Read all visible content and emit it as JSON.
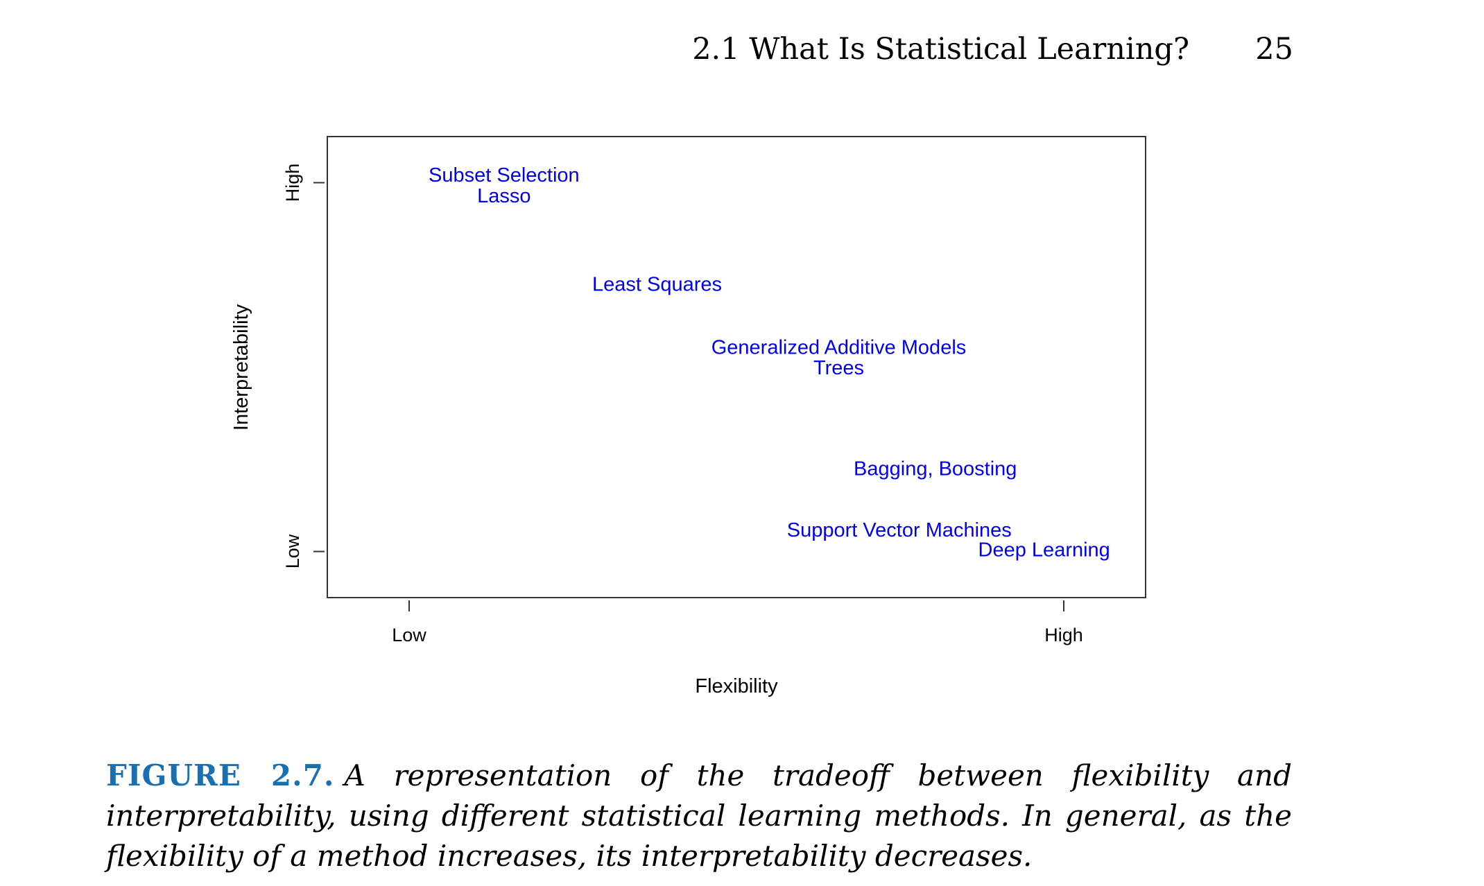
{
  "header": {
    "section_title": "2.1 What Is Statistical Learning?",
    "page_number": "25"
  },
  "chart_data": {
    "type": "scatter",
    "title": "",
    "xlabel": "Flexibility",
    "ylabel": "Interpretability",
    "xlim": [
      0,
      1
    ],
    "ylim": [
      0,
      1
    ],
    "x_ticks": [
      {
        "value": 0.1,
        "label": "Low"
      },
      {
        "value": 0.9,
        "label": "High"
      }
    ],
    "y_ticks": [
      {
        "value": 0.1,
        "label": "Low"
      },
      {
        "value": 0.9,
        "label": "High"
      }
    ],
    "label_color": "#0000ee",
    "grid": false,
    "points": [
      {
        "label": "Subset Selection",
        "x": 0.216,
        "y": 0.914
      },
      {
        "label": "Lasso",
        "x": 0.216,
        "y": 0.869
      },
      {
        "label": "Least Squares",
        "x": 0.403,
        "y": 0.677
      },
      {
        "label": "Generalized Additive Models",
        "x": 0.625,
        "y": 0.54
      },
      {
        "label": "Trees",
        "x": 0.625,
        "y": 0.496
      },
      {
        "label": "Bagging, Boosting",
        "x": 0.743,
        "y": 0.277
      },
      {
        "label": "Support Vector Machines",
        "x": 0.699,
        "y": 0.144
      },
      {
        "label": "Deep Learning",
        "x": 0.876,
        "y": 0.101
      }
    ]
  },
  "caption": {
    "label": "FIGURE 2.7.",
    "text": "A representation of the tradeoff between flexibility and interpretability, using different statistical learning methods. In general, as the flexibility of a method increases, its interpretability decreases."
  }
}
